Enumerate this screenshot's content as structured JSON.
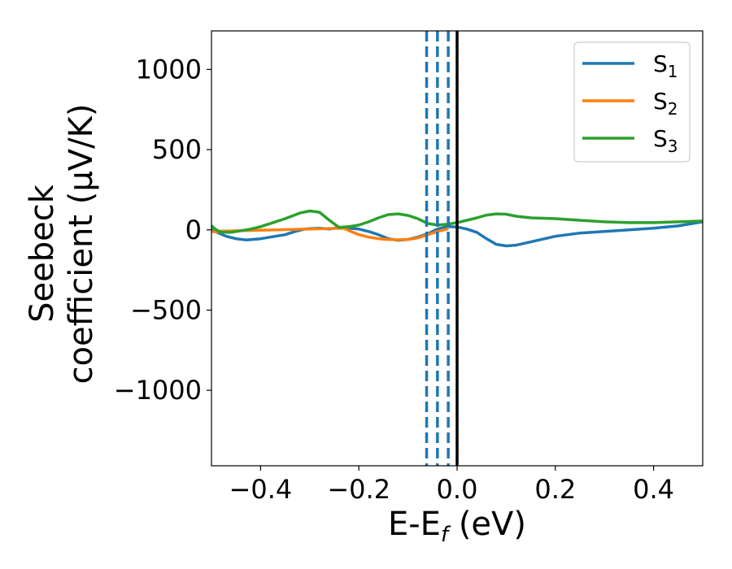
{
  "chart_data": {
    "type": "line",
    "xlabel": "E-E_f (eV)",
    "xlabel_parts": {
      "base": "E-E",
      "sub": "f",
      "tail": " (eV)"
    },
    "ylabel": "Seebeck coefficient (μV/K)",
    "ylabel_lines": [
      "Seebeck",
      "coefficient  (μV/K)"
    ],
    "xlim": [
      -0.5,
      0.5
    ],
    "ylim": [
      -1470,
      1240
    ],
    "xticks": [
      -0.4,
      -0.2,
      0.0,
      0.2,
      0.4
    ],
    "xtick_labels": [
      "−0.4",
      "−0.2",
      "0.0",
      "0.2",
      "0.4"
    ],
    "yticks": [
      1000,
      500,
      0,
      -500,
      -1000
    ],
    "ytick_labels": [
      "1000",
      "500",
      "0",
      "−500",
      "−1000"
    ],
    "grid": false,
    "legend_position": "top-right",
    "series": [
      {
        "name": "S_1",
        "label_base": "S",
        "label_sub": "1",
        "color": "#1f77b4",
        "x": [
          -0.5,
          -0.47,
          -0.45,
          -0.43,
          -0.4,
          -0.37,
          -0.35,
          -0.33,
          -0.31,
          -0.3,
          -0.28,
          -0.26,
          -0.24,
          -0.22,
          -0.2,
          -0.18,
          -0.16,
          -0.14,
          -0.12,
          -0.1,
          -0.08,
          -0.06,
          -0.04,
          -0.02,
          0.0,
          0.02,
          0.04,
          0.06,
          0.08,
          0.1,
          0.12,
          0.15,
          0.2,
          0.25,
          0.3,
          0.35,
          0.4,
          0.45,
          0.5
        ],
        "y": [
          0,
          -40,
          -55,
          -63,
          -55,
          -40,
          -30,
          -10,
          5,
          8,
          10,
          5,
          15,
          10,
          5,
          -10,
          -30,
          -55,
          -65,
          -60,
          -45,
          -25,
          5,
          20,
          18,
          5,
          -15,
          -55,
          -90,
          -100,
          -95,
          -75,
          -40,
          -20,
          -10,
          0,
          10,
          25,
          50
        ]
      },
      {
        "name": "S_2",
        "label_base": "S",
        "label_sub": "2",
        "color": "#ff7f0e",
        "x": [
          -0.5,
          -0.49,
          -0.48,
          -0.23,
          -0.22,
          -0.2,
          -0.18,
          -0.16,
          -0.14,
          -0.12,
          -0.1,
          -0.08,
          -0.06,
          -0.04,
          -0.02
        ],
        "y": [
          -10,
          -12,
          -8,
          10,
          -5,
          -30,
          -45,
          -55,
          -60,
          -62,
          -60,
          -50,
          -30,
          -10,
          5
        ]
      },
      {
        "name": "S_3",
        "label_base": "S",
        "label_sub": "3",
        "color": "#2ca02c",
        "x": [
          -0.5,
          -0.49,
          -0.48,
          -0.46,
          -0.44,
          -0.42,
          -0.4,
          -0.38,
          -0.35,
          -0.32,
          -0.3,
          -0.28,
          -0.26,
          -0.24,
          -0.22,
          -0.2,
          -0.18,
          -0.16,
          -0.14,
          -0.12,
          -0.1,
          -0.08,
          -0.06,
          -0.04,
          -0.02,
          0.0,
          0.02,
          0.04,
          0.06,
          0.08,
          0.1,
          0.12,
          0.15,
          0.2,
          0.25,
          0.3,
          0.35,
          0.4,
          0.45,
          0.5
        ],
        "y": [
          25,
          0,
          -15,
          -15,
          -5,
          5,
          20,
          40,
          70,
          105,
          118,
          110,
          60,
          15,
          20,
          30,
          50,
          75,
          95,
          100,
          90,
          70,
          40,
          30,
          35,
          45,
          60,
          75,
          92,
          100,
          98,
          85,
          75,
          70,
          60,
          50,
          45,
          45,
          50,
          55
        ]
      }
    ],
    "vertical_lines": [
      {
        "x": -0.062,
        "style": "dashed",
        "color": "#1f77b4"
      },
      {
        "x": -0.04,
        "style": "dashed",
        "color": "#1f77b4"
      },
      {
        "x": -0.018,
        "style": "dashed",
        "color": "#1f77b4"
      },
      {
        "x": 0.0,
        "style": "solid",
        "color": "#000000"
      }
    ]
  }
}
